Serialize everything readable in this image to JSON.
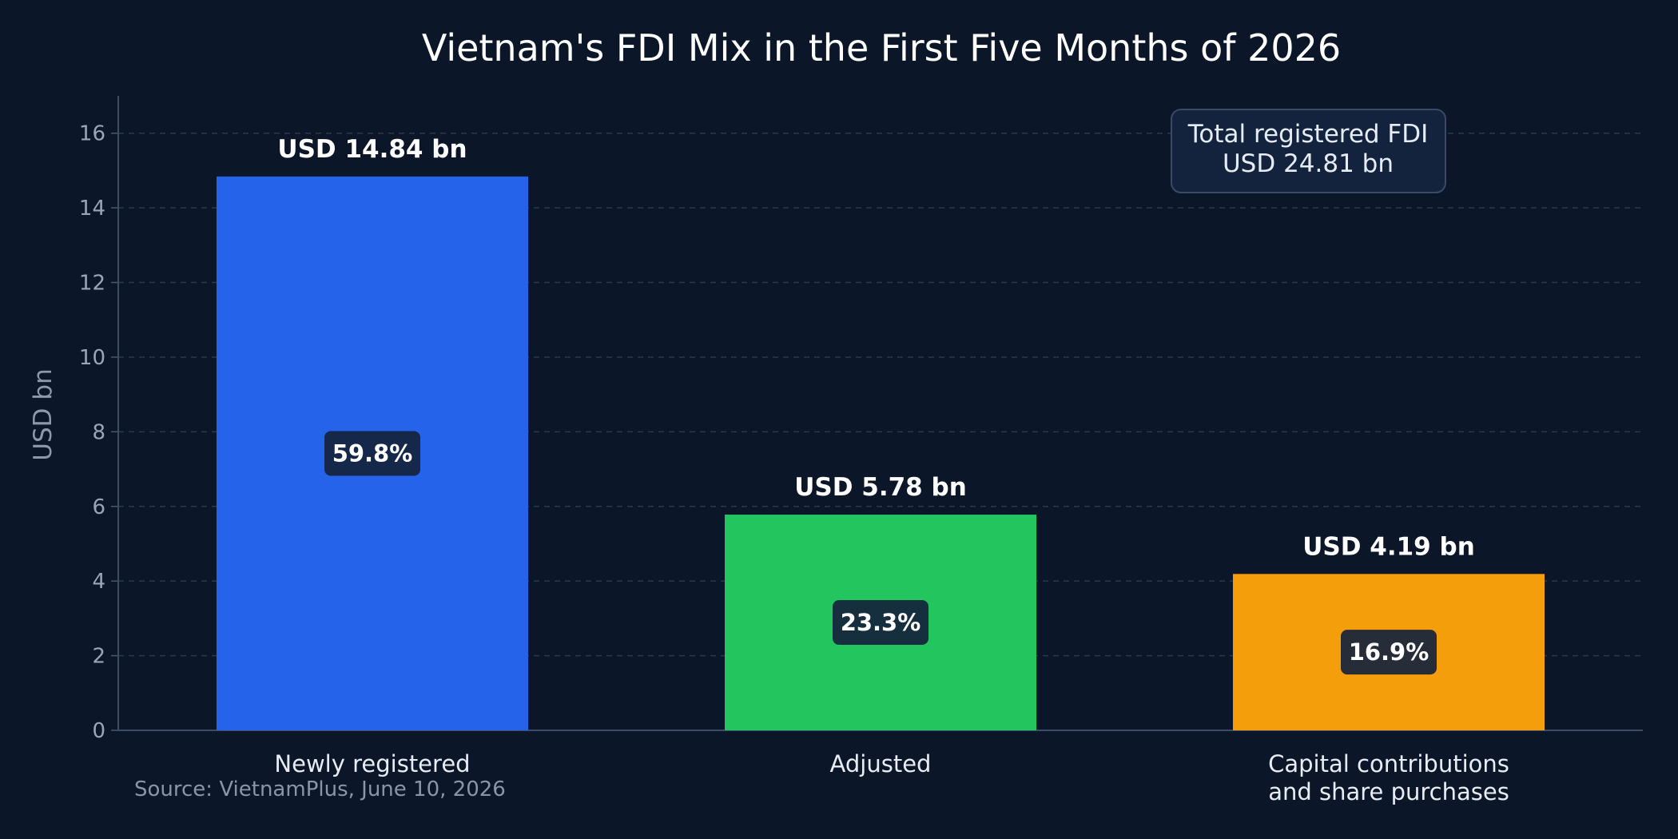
{
  "chart_data": {
    "type": "bar",
    "title": "Vietnam's FDI Mix in the First Five Months of 2026",
    "ylabel": "USD bn",
    "ylim": [
      0,
      17
    ],
    "yticks": [
      0,
      2,
      4,
      6,
      8,
      10,
      12,
      14,
      16
    ],
    "grid": true,
    "categories": [
      [
        "Newly registered"
      ],
      [
        "Adjusted"
      ],
      [
        "Capital contributions",
        "and share purchases"
      ]
    ],
    "values": [
      14.84,
      5.78,
      4.19
    ],
    "value_labels": [
      "USD 14.84 bn",
      "USD 5.78 bn",
      "USD 4.19 bn"
    ],
    "share_labels": [
      "59.8%",
      "23.3%",
      "16.9%"
    ],
    "colors": [
      "#2563eb",
      "#22c55e",
      "#f59e0b"
    ],
    "annotation": {
      "lines": [
        "Total registered FDI",
        "USD 24.81 bn"
      ]
    },
    "source": "Source: VietnamPlus, June 10, 2026"
  }
}
